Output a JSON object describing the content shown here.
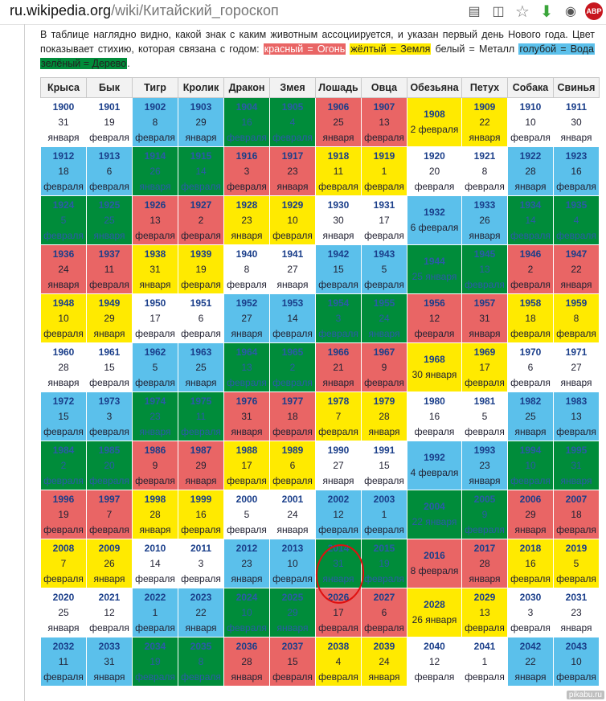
{
  "address_bar": {
    "domain": "ru.wikipedia.org",
    "path": "/wiki/Китайский_гороскоп"
  },
  "toolbar_icons": [
    "reader-icon",
    "page-icon",
    "star-icon",
    "download-icon",
    "proxy-off-icon",
    "adblock-plus-icon"
  ],
  "adblock_label": "ABP",
  "intro_text": "В таблице наглядно видно, какой знак с каким животным ассоциируется, и указан первый день Нового года. Цвет показывает стихию, которая связана с годом: ",
  "legend": [
    {
      "label": "красный = Огонь",
      "color": "#e96565"
    },
    {
      "label": "жёлтый = Земля",
      "color": "#ffea00"
    },
    {
      "label": "белый = Металл",
      "color": "#ffffff"
    },
    {
      "label": "голубой = Вода",
      "color": "#5bc0eb"
    },
    {
      "label": "зелёный = Дерево",
      "color": "#008c3a"
    }
  ],
  "legend_end": ".",
  "headers": [
    "Крыса",
    "Бык",
    "Тигр",
    "Кролик",
    "Дракон",
    "Змея",
    "Лошадь",
    "Овца",
    "Обезьяна",
    "Петух",
    "Собака",
    "Свинья"
  ],
  "rows": [
    [
      [
        "1900",
        "31",
        "января",
        "white"
      ],
      [
        "1901",
        "19",
        "февраля",
        "white"
      ],
      [
        "1902",
        "8",
        "февраля",
        "blue"
      ],
      [
        "1903",
        "29",
        "января",
        "blue"
      ],
      [
        "1904",
        "16",
        "февраля",
        "green"
      ],
      [
        "1905",
        "4",
        "февраля",
        "green"
      ],
      [
        "1906",
        "25",
        "января",
        "red"
      ],
      [
        "1907",
        "13",
        "февраля",
        "red"
      ],
      [
        "1908",
        "2 февраля",
        "",
        "yellow"
      ],
      [
        "1909",
        "22",
        "января",
        "yellow"
      ],
      [
        "1910",
        "10",
        "февраля",
        "white"
      ],
      [
        "1911",
        "30",
        "января",
        "white"
      ]
    ],
    [
      [
        "1912",
        "18",
        "февраля",
        "blue"
      ],
      [
        "1913",
        "6",
        "февраля",
        "blue"
      ],
      [
        "1914",
        "26",
        "января",
        "green"
      ],
      [
        "1915",
        "14",
        "февраля",
        "green"
      ],
      [
        "1916",
        "3",
        "февраля",
        "red"
      ],
      [
        "1917",
        "23",
        "января",
        "red"
      ],
      [
        "1918",
        "11",
        "февраля",
        "yellow"
      ],
      [
        "1919",
        "1",
        "февраля",
        "yellow"
      ],
      [
        "1920",
        "20",
        "февраля",
        "white"
      ],
      [
        "1921",
        "8",
        "февраля",
        "white"
      ],
      [
        "1922",
        "28",
        "января",
        "blue"
      ],
      [
        "1923",
        "16",
        "февраля",
        "blue"
      ]
    ],
    [
      [
        "1924",
        "5",
        "февраля",
        "green"
      ],
      [
        "1925",
        "25",
        "января",
        "green"
      ],
      [
        "1926",
        "13",
        "февраля",
        "red"
      ],
      [
        "1927",
        "2",
        "февраля",
        "red"
      ],
      [
        "1928",
        "23",
        "января",
        "yellow"
      ],
      [
        "1929",
        "10",
        "февраля",
        "yellow"
      ],
      [
        "1930",
        "30",
        "января",
        "white"
      ],
      [
        "1931",
        "17",
        "февраля",
        "white"
      ],
      [
        "1932",
        "6 февраля",
        "",
        "blue"
      ],
      [
        "1933",
        "26",
        "января",
        "blue"
      ],
      [
        "1934",
        "14",
        "февраля",
        "green"
      ],
      [
        "1935",
        "4",
        "февраля",
        "green"
      ]
    ],
    [
      [
        "1936",
        "24",
        "января",
        "red"
      ],
      [
        "1937",
        "11",
        "февраля",
        "red"
      ],
      [
        "1938",
        "31",
        "января",
        "yellow"
      ],
      [
        "1939",
        "19",
        "февраля",
        "yellow"
      ],
      [
        "1940",
        "8",
        "февраля",
        "white"
      ],
      [
        "1941",
        "27",
        "января",
        "white"
      ],
      [
        "1942",
        "15",
        "февраля",
        "blue"
      ],
      [
        "1943",
        "5",
        "февраля",
        "blue"
      ],
      [
        "1944",
        "25 января",
        "",
        "green"
      ],
      [
        "1945",
        "13",
        "февраля",
        "green"
      ],
      [
        "1946",
        "2",
        "февраля",
        "red"
      ],
      [
        "1947",
        "22",
        "января",
        "red"
      ]
    ],
    [
      [
        "1948",
        "10",
        "февраля",
        "yellow"
      ],
      [
        "1949",
        "29",
        "января",
        "yellow"
      ],
      [
        "1950",
        "17",
        "февраля",
        "white"
      ],
      [
        "1951",
        "6",
        "февраля",
        "white"
      ],
      [
        "1952",
        "27",
        "января",
        "blue"
      ],
      [
        "1953",
        "14",
        "февраля",
        "blue"
      ],
      [
        "1954",
        "3",
        "февраля",
        "green"
      ],
      [
        "1955",
        "24",
        "января",
        "green"
      ],
      [
        "1956",
        "12",
        "февраля",
        "red"
      ],
      [
        "1957",
        "31",
        "января",
        "red"
      ],
      [
        "1958",
        "18",
        "февраля",
        "yellow"
      ],
      [
        "1959",
        "8",
        "февраля",
        "yellow"
      ]
    ],
    [
      [
        "1960",
        "28",
        "января",
        "white"
      ],
      [
        "1961",
        "15",
        "февраля",
        "white"
      ],
      [
        "1962",
        "5",
        "февраля",
        "blue"
      ],
      [
        "1963",
        "25",
        "января",
        "blue"
      ],
      [
        "1964",
        "13",
        "февраля",
        "green"
      ],
      [
        "1965",
        "2",
        "февраля",
        "green"
      ],
      [
        "1966",
        "21",
        "января",
        "red"
      ],
      [
        "1967",
        "9",
        "февраля",
        "red"
      ],
      [
        "1968",
        "30 января",
        "",
        "yellow"
      ],
      [
        "1969",
        "17",
        "февраля",
        "yellow"
      ],
      [
        "1970",
        "6",
        "февраля",
        "white"
      ],
      [
        "1971",
        "27",
        "января",
        "white"
      ]
    ],
    [
      [
        "1972",
        "15",
        "февраля",
        "blue"
      ],
      [
        "1973",
        "3",
        "февраля",
        "blue"
      ],
      [
        "1974",
        "23",
        "января",
        "green"
      ],
      [
        "1975",
        "11",
        "февраля",
        "green"
      ],
      [
        "1976",
        "31",
        "января",
        "red"
      ],
      [
        "1977",
        "18",
        "февраля",
        "red"
      ],
      [
        "1978",
        "7",
        "февраля",
        "yellow"
      ],
      [
        "1979",
        "28",
        "января",
        "yellow"
      ],
      [
        "1980",
        "16",
        "февраля",
        "white"
      ],
      [
        "1981",
        "5",
        "февраля",
        "white"
      ],
      [
        "1982",
        "25",
        "января",
        "blue"
      ],
      [
        "1983",
        "13",
        "февраля",
        "blue"
      ]
    ],
    [
      [
        "1984",
        "2",
        "февраля",
        "green"
      ],
      [
        "1985",
        "20",
        "февраля",
        "green"
      ],
      [
        "1986",
        "9",
        "февраля",
        "red"
      ],
      [
        "1987",
        "29",
        "января",
        "red"
      ],
      [
        "1988",
        "17",
        "февраля",
        "yellow"
      ],
      [
        "1989",
        "6",
        "февраля",
        "yellow"
      ],
      [
        "1990",
        "27",
        "января",
        "white"
      ],
      [
        "1991",
        "15",
        "февраля",
        "white"
      ],
      [
        "1992",
        "4 февраля",
        "",
        "blue"
      ],
      [
        "1993",
        "23",
        "января",
        "blue"
      ],
      [
        "1994",
        "10",
        "февраля",
        "green"
      ],
      [
        "1995",
        "31",
        "января",
        "green"
      ]
    ],
    [
      [
        "1996",
        "19",
        "февраля",
        "red"
      ],
      [
        "1997",
        "7",
        "февраля",
        "red"
      ],
      [
        "1998",
        "28",
        "января",
        "yellow"
      ],
      [
        "1999",
        "16",
        "февраля",
        "yellow"
      ],
      [
        "2000",
        "5",
        "февраля",
        "white"
      ],
      [
        "2001",
        "24",
        "января",
        "white"
      ],
      [
        "2002",
        "12",
        "февраля",
        "blue"
      ],
      [
        "2003",
        "1",
        "февраля",
        "blue"
      ],
      [
        "2004",
        "22 января",
        "",
        "green"
      ],
      [
        "2005",
        "9",
        "февраля",
        "green"
      ],
      [
        "2006",
        "29",
        "января",
        "red"
      ],
      [
        "2007",
        "18",
        "февраля",
        "red"
      ]
    ],
    [
      [
        "2008",
        "7",
        "февраля",
        "yellow"
      ],
      [
        "2009",
        "26",
        "января",
        "yellow"
      ],
      [
        "2010",
        "14",
        "февраля",
        "white"
      ],
      [
        "2011",
        "3",
        "февраля",
        "white"
      ],
      [
        "2012",
        "23",
        "января",
        "blue"
      ],
      [
        "2013",
        "10",
        "февраля",
        "blue"
      ],
      [
        "2014",
        "31",
        "января",
        "green"
      ],
      [
        "2015",
        "19",
        "февраля",
        "green"
      ],
      [
        "2016",
        "8 февраля",
        "",
        "red"
      ],
      [
        "2017",
        "28",
        "января",
        "red"
      ],
      [
        "2018",
        "16",
        "февраля",
        "yellow"
      ],
      [
        "2019",
        "5",
        "февраля",
        "yellow"
      ]
    ],
    [
      [
        "2020",
        "25",
        "января",
        "white"
      ],
      [
        "2021",
        "12",
        "февраля",
        "white"
      ],
      [
        "2022",
        "1",
        "февраля",
        "blue"
      ],
      [
        "2023",
        "22",
        "января",
        "blue"
      ],
      [
        "2024",
        "10",
        "февраля",
        "green"
      ],
      [
        "2025",
        "29",
        "января",
        "green"
      ],
      [
        "2026",
        "17",
        "февраля",
        "red"
      ],
      [
        "2027",
        "6",
        "февраля",
        "red"
      ],
      [
        "2028",
        "26 января",
        "",
        "yellow"
      ],
      [
        "2029",
        "13",
        "февраля",
        "yellow"
      ],
      [
        "2030",
        "3",
        "февраля",
        "white"
      ],
      [
        "2031",
        "23",
        "января",
        "white"
      ]
    ],
    [
      [
        "2032",
        "11",
        "февраля",
        "blue"
      ],
      [
        "2033",
        "31",
        "января",
        "blue"
      ],
      [
        "2034",
        "19",
        "февраля",
        "green"
      ],
      [
        "2035",
        "8",
        "февраля",
        "green"
      ],
      [
        "2036",
        "28",
        "января",
        "red"
      ],
      [
        "2037",
        "15",
        "февраля",
        "red"
      ],
      [
        "2038",
        "4",
        "февраля",
        "yellow"
      ],
      [
        "2039",
        "24",
        "января",
        "yellow"
      ],
      [
        "2040",
        "12",
        "февраля",
        "white"
      ],
      [
        "2041",
        "1",
        "февраля",
        "white"
      ],
      [
        "2042",
        "22",
        "января",
        "blue"
      ],
      [
        "2043",
        "10",
        "февраля",
        "blue"
      ]
    ]
  ],
  "highlighted_cell": "2014",
  "watermark": "pikabu.ru"
}
